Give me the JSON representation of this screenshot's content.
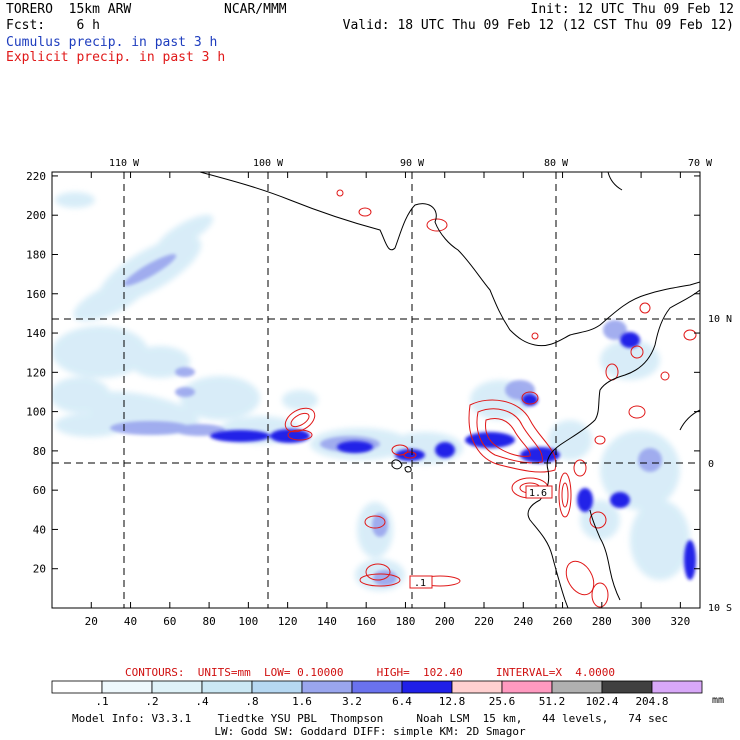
{
  "header": {
    "model": "TORERO  15km ARW",
    "org": "NCAR/MMM",
    "init": "Init: 12 UTC Thu 09 Feb 12",
    "fcst": "Fcst:    6 h",
    "valid": "Valid: 18 UTC Thu 09 Feb 12 (12 CST Thu 09 Feb 12)",
    "cumulus": "Cumulus precip. in past 3 h",
    "explicit": "Explicit precip. in past 3 h"
  },
  "map": {
    "lon_labels": [
      "110 W",
      "100 W",
      "90 W",
      "80 W",
      "70 W"
    ],
    "lat_labels": [
      "10 N",
      "0",
      "10 S"
    ],
    "x_ticks": [
      "20",
      "40",
      "60",
      "80",
      "100",
      "120",
      "140",
      "160",
      "180",
      "200",
      "220",
      "240",
      "260",
      "280",
      "300",
      "320"
    ],
    "y_ticks": [
      "20",
      "40",
      "60",
      "80",
      "100",
      "120",
      "140",
      "160",
      "180",
      "200",
      "220"
    ],
    "inline_labels": [
      ".1",
      "1.6"
    ],
    "colors": {
      "coast": "#000000",
      "explicit": "#e01818",
      "grid": "#000000"
    }
  },
  "contours_line": "CONTOURS:  UNITS=mm  LOW= 0.10000     HIGH=  102.40     INTERVAL=X  4.0000",
  "colorbar": {
    "unit": "mm",
    "labels": [
      ".1",
      ".2",
      ".4",
      ".8",
      "1.6",
      "3.2",
      "6.4",
      "12.8",
      "25.6",
      "51.2",
      "102.4",
      "204.8"
    ],
    "colors": [
      "#ffffff",
      "#eef8fc",
      "#dff2f8",
      "#cbe8f4",
      "#b6d8f2",
      "#9aa6ee",
      "#6a72ee",
      "#2020e8",
      "#ffd0d0",
      "#ff9ac0",
      "#b0b0b0",
      "#404040",
      "#d8a8f8"
    ]
  },
  "footer": {
    "line1": "Model Info: V3.3.1    Tiedtke YSU PBL  Thompson     Noah LSM  15 km,   44 levels,   74 sec",
    "line2": "LW: Godd SW: Goddard DIFF: simple KM: 2D Smagor"
  }
}
